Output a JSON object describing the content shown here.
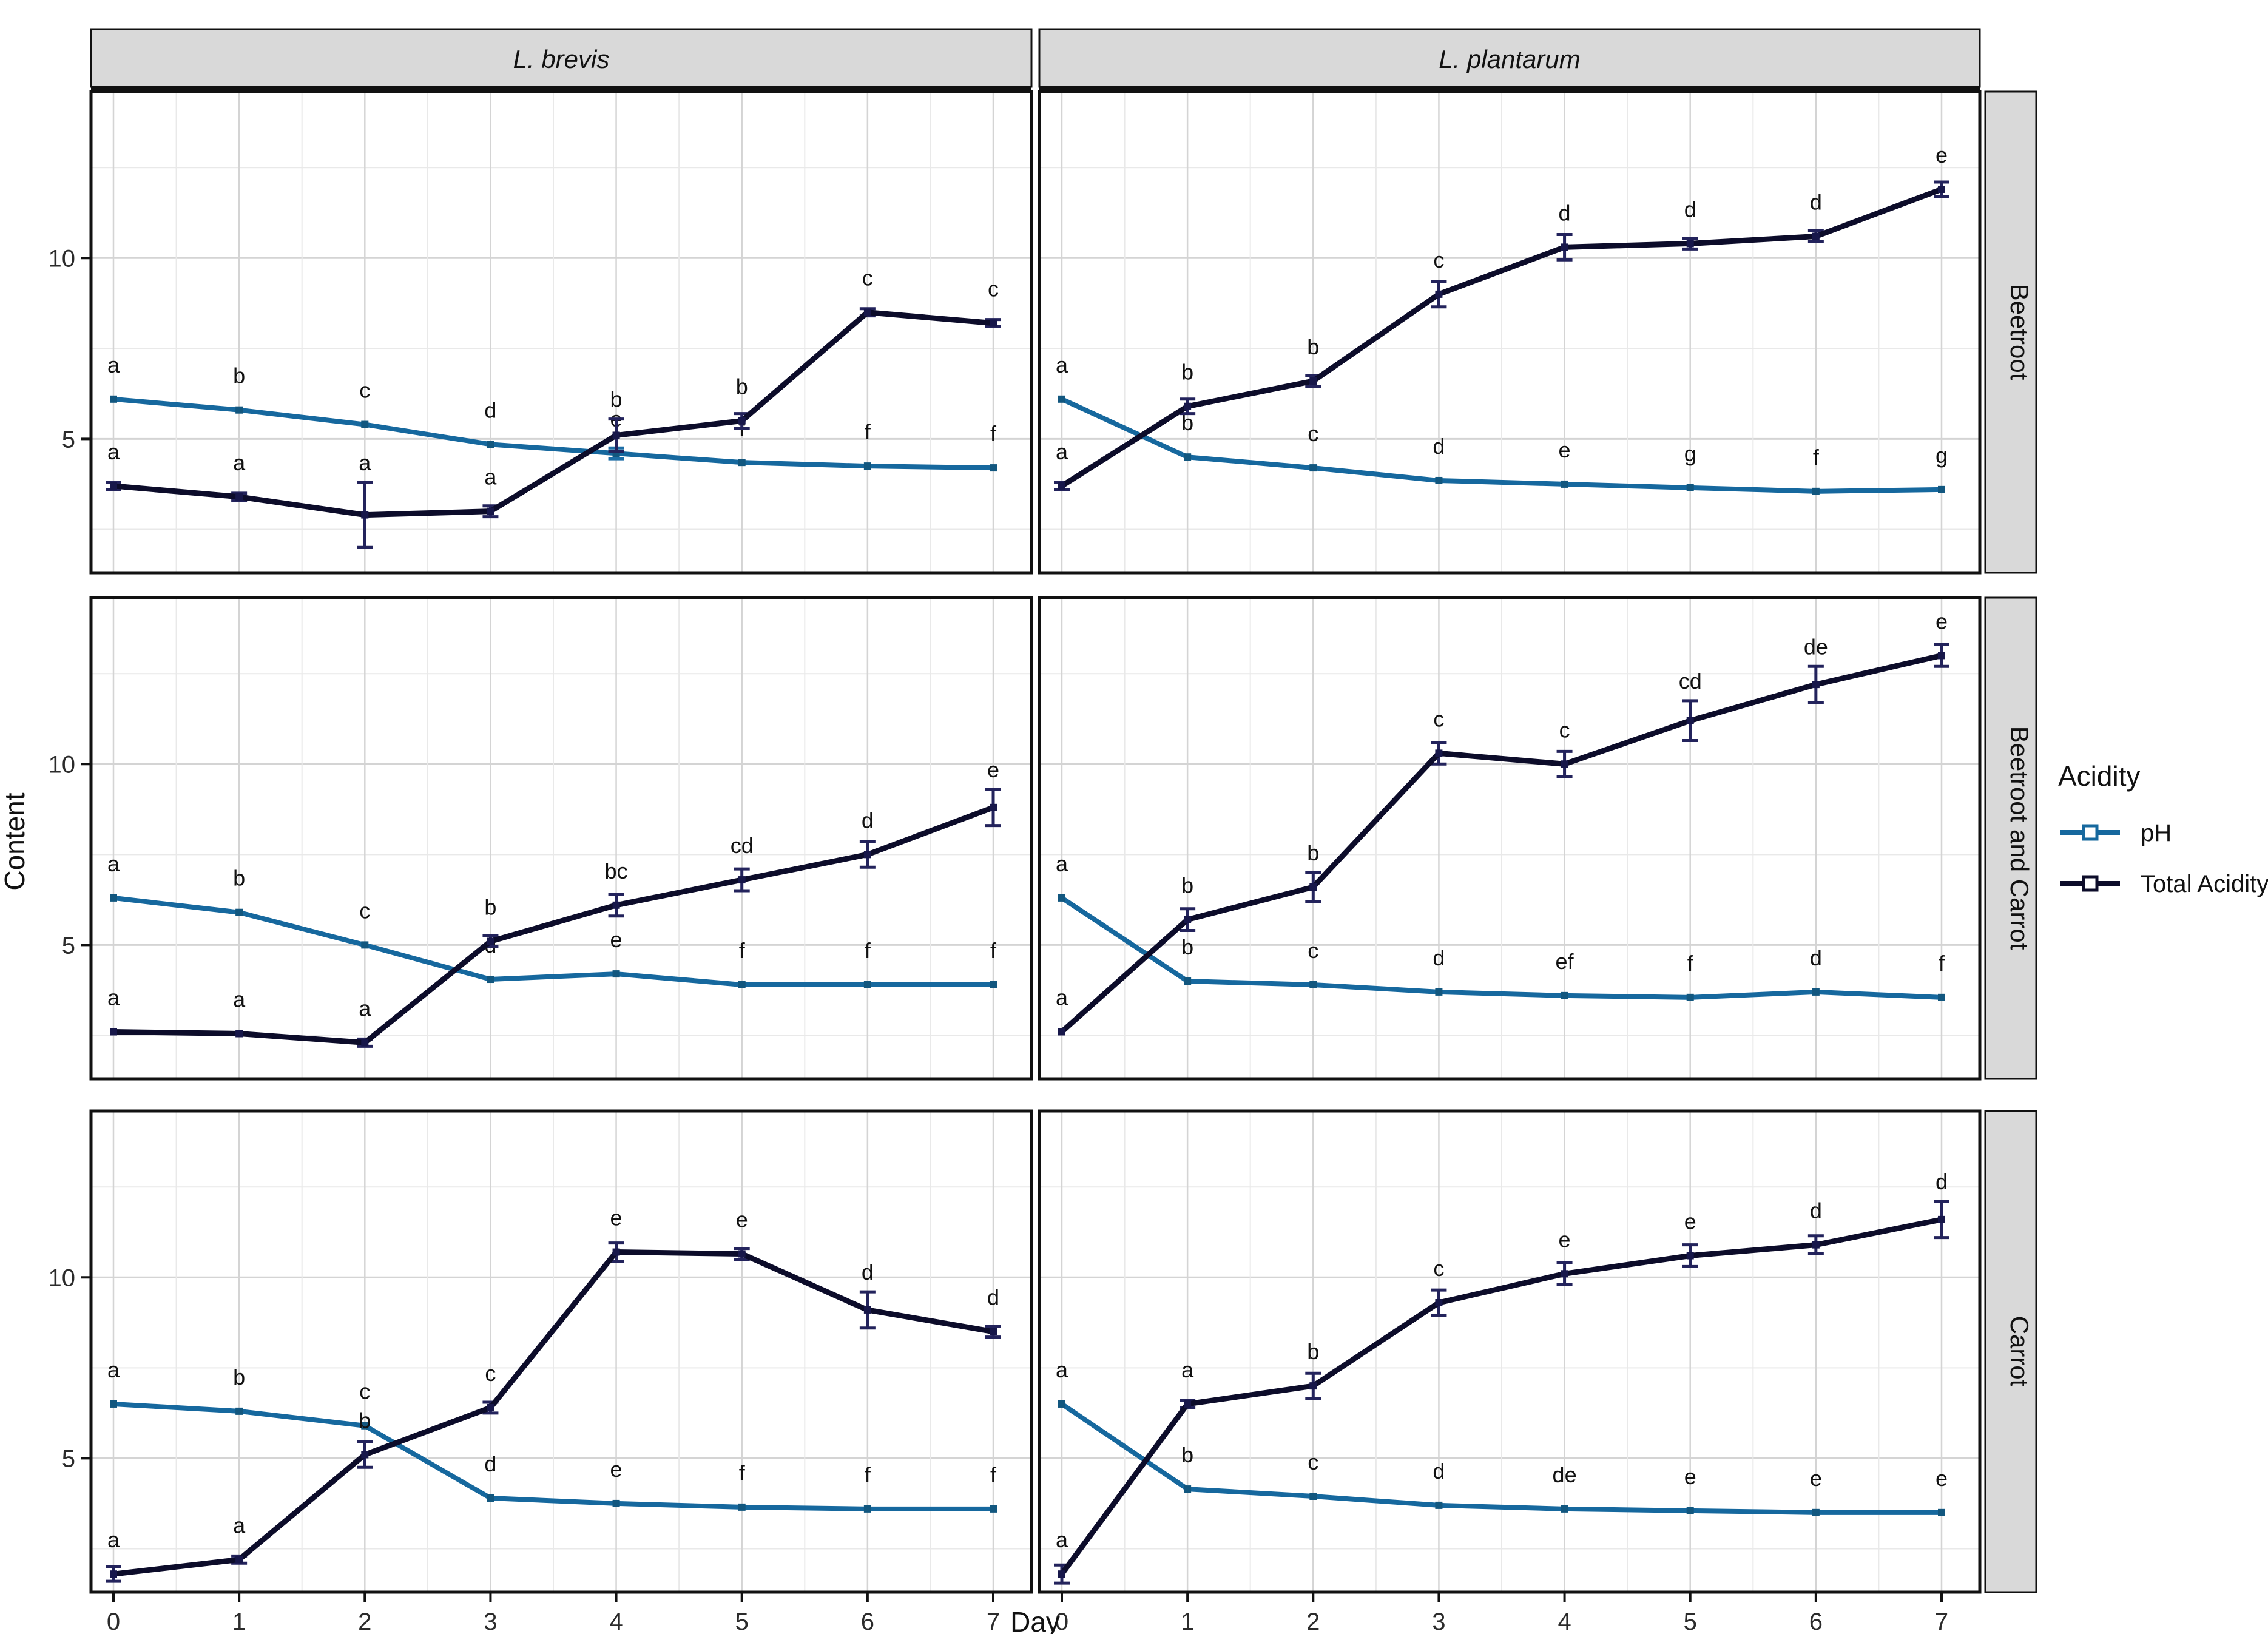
{
  "figure": {
    "y_axis_title": "Content",
    "x_axis_title": "Day",
    "column_facets": [
      "L. brevis",
      "L. plantarum"
    ],
    "row_facets": [
      "Beetroot",
      "Beetroot and Carrot",
      "Carrot"
    ],
    "legend": {
      "title": "Acidity",
      "items": [
        {
          "label": "pH",
          "color": "#16689e"
        },
        {
          "label": "Total Acidity",
          "color": "#0c0c2a"
        }
      ]
    }
  },
  "chart_data": {
    "type": "line",
    "x": [
      0,
      1,
      2,
      3,
      4,
      5,
      6,
      7
    ],
    "xlabel": "Day",
    "ylabel": "Content",
    "ylim": [
      1.3,
      14.6
    ],
    "yticks": [
      5,
      10
    ],
    "xticks": [
      0,
      1,
      2,
      3,
      4,
      5,
      6,
      7
    ],
    "grid": {
      "major": "#d4d4d4",
      "minor": "#e9e9e9"
    },
    "strip_bg": "#d9d9d9",
    "panel_border": "#111111",
    "series_styles": {
      "ph": {
        "name": "pH",
        "color": "#16689e",
        "letter_color": "#3287b9",
        "error_color": "#1d6ea6",
        "point_color": "#12577f"
      },
      "ta": {
        "name": "Total Acidity",
        "color": "#0c0c2a",
        "letter_color": "#27407f",
        "error_color": "#23235c",
        "point_color": "#17174a"
      }
    },
    "panels": [
      {
        "row": "Beetroot",
        "col": "L. brevis",
        "ph": {
          "values": [
            6.1,
            5.8,
            5.4,
            4.85,
            4.6,
            4.35,
            4.25,
            4.2
          ],
          "letters": [
            "a",
            "b",
            "c",
            "d",
            "e",
            "f",
            "f",
            "f"
          ],
          "errors": [
            0,
            0,
            0,
            0,
            0.15,
            0,
            0,
            0
          ]
        },
        "ta": {
          "values": [
            3.7,
            3.4,
            2.9,
            3.0,
            5.1,
            5.5,
            8.5,
            8.2
          ],
          "letters": [
            "a",
            "a",
            "a",
            "a",
            "b",
            "b",
            "c",
            "c"
          ],
          "errors": [
            0.1,
            0.1,
            0.9,
            0.15,
            0.45,
            0.2,
            0.1,
            0.1
          ]
        }
      },
      {
        "row": "Beetroot",
        "col": "L. plantarum",
        "ph": {
          "values": [
            6.1,
            4.5,
            4.2,
            3.85,
            3.75,
            3.65,
            3.55,
            3.6
          ],
          "letters": [
            "a",
            "b",
            "c",
            "d",
            "e",
            "g",
            "f",
            "g"
          ],
          "errors": [
            0,
            0,
            0,
            0,
            0,
            0,
            0,
            0
          ]
        },
        "ta": {
          "values": [
            3.7,
            5.9,
            6.6,
            9.0,
            10.3,
            10.4,
            10.6,
            11.9
          ],
          "letters": [
            "a",
            "b",
            "b",
            "c",
            "d",
            "d",
            "d",
            "e"
          ],
          "errors": [
            0.1,
            0.2,
            0.15,
            0.35,
            0.35,
            0.15,
            0.15,
            0.2
          ]
        }
      },
      {
        "row": "Beetroot and Carrot",
        "col": "L. brevis",
        "ph": {
          "values": [
            6.3,
            5.9,
            5.0,
            4.05,
            4.2,
            3.9,
            3.9,
            3.9
          ],
          "letters": [
            "a",
            "b",
            "c",
            "d",
            "e",
            "f",
            "f",
            "f"
          ],
          "errors": [
            0,
            0,
            0,
            0,
            0,
            0,
            0,
            0
          ]
        },
        "ta": {
          "values": [
            2.6,
            2.55,
            2.3,
            5.1,
            6.1,
            6.8,
            7.5,
            8.8
          ],
          "letters": [
            "a",
            "a",
            "a",
            "b",
            "bc",
            "cd",
            "d",
            "e"
          ],
          "errors": [
            0.05,
            0.05,
            0.1,
            0.15,
            0.3,
            0.3,
            0.35,
            0.5
          ]
        }
      },
      {
        "row": "Beetroot and Carrot",
        "col": "L. plantarum",
        "ph": {
          "values": [
            6.3,
            4.0,
            3.9,
            3.7,
            3.6,
            3.55,
            3.7,
            3.55
          ],
          "letters": [
            "a",
            "b",
            "c",
            "d",
            "ef",
            "f",
            "d",
            "f"
          ],
          "errors": [
            0,
            0,
            0,
            0,
            0,
            0,
            0,
            0
          ]
        },
        "ta": {
          "values": [
            2.6,
            5.7,
            6.6,
            10.3,
            10.0,
            11.2,
            12.2,
            13.0
          ],
          "letters": [
            "a",
            "b",
            "b",
            "c",
            "c",
            "cd",
            "de",
            "e"
          ],
          "errors": [
            0.05,
            0.3,
            0.4,
            0.3,
            0.35,
            0.55,
            0.5,
            0.3
          ]
        }
      },
      {
        "row": "Carrot",
        "col": "L. brevis",
        "ph": {
          "values": [
            6.5,
            6.3,
            5.9,
            3.9,
            3.75,
            3.65,
            3.6,
            3.6
          ],
          "letters": [
            "a",
            "b",
            "c",
            "d",
            "e",
            "f",
            "f",
            "f"
          ],
          "errors": [
            0,
            0,
            0,
            0,
            0,
            0,
            0,
            0
          ]
        },
        "ta": {
          "values": [
            1.8,
            2.2,
            5.1,
            6.4,
            10.7,
            10.65,
            9.1,
            8.5
          ],
          "letters": [
            "a",
            "a",
            "b",
            "c",
            "e",
            "e",
            "d",
            "d"
          ],
          "errors": [
            0.2,
            0.1,
            0.35,
            0.15,
            0.25,
            0.15,
            0.5,
            0.15
          ]
        }
      },
      {
        "row": "Carrot",
        "col": "L. plantarum",
        "ph": {
          "values": [
            6.5,
            4.15,
            3.95,
            3.7,
            3.6,
            3.55,
            3.5,
            3.5
          ],
          "letters": [
            "a",
            "b",
            "c",
            "d",
            "de",
            "e",
            "e",
            "e"
          ],
          "errors": [
            0,
            0,
            0,
            0,
            0,
            0,
            0,
            0
          ]
        },
        "ta": {
          "values": [
            1.8,
            6.5,
            7.0,
            9.3,
            10.1,
            10.6,
            10.9,
            11.6
          ],
          "letters": [
            "a",
            "a",
            "b",
            "c",
            "e",
            "e",
            "d",
            "d"
          ],
          "errors": [
            0.25,
            0.1,
            0.35,
            0.35,
            0.3,
            0.3,
            0.25,
            0.5
          ]
        }
      }
    ],
    "legend_position": "right",
    "title": "",
    "subtitle": ""
  }
}
